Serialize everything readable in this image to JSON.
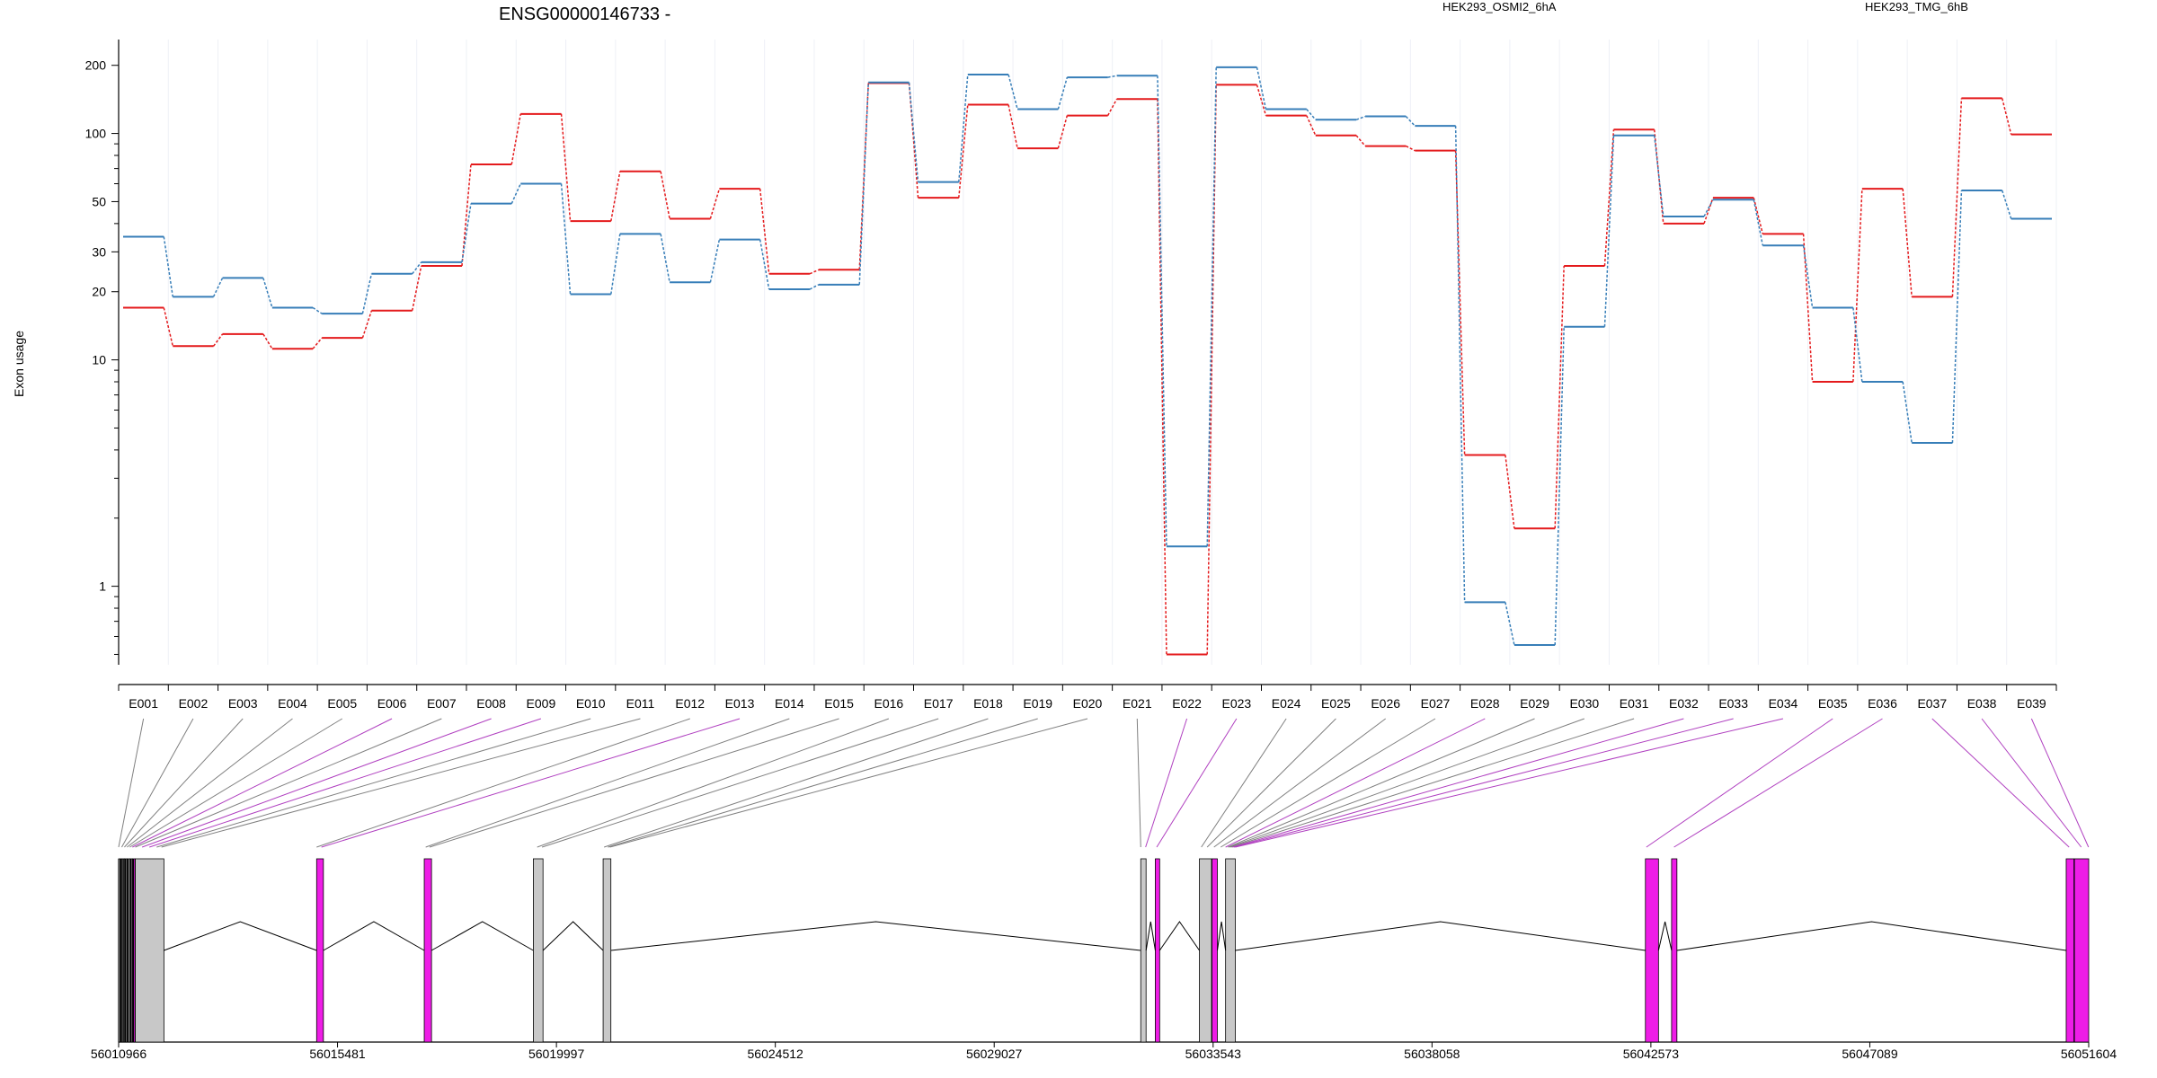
{
  "title": "ENSG00000146733 -",
  "ylabel": "Exon usage",
  "legend": [
    {
      "name": "HEK293_OSMI2_6hA",
      "color": "#e41a1c"
    },
    {
      "name": "HEK293_TMG_6hB",
      "color": "#377eb8"
    }
  ],
  "chart_data": {
    "type": "line",
    "scale": "log",
    "ylim": [
      0.45,
      260
    ],
    "yticks": [
      1,
      10,
      20,
      30,
      50,
      100,
      200
    ],
    "categories": [
      "E001",
      "E002",
      "E003",
      "E004",
      "E005",
      "E006",
      "E007",
      "E008",
      "E009",
      "E010",
      "E011",
      "E012",
      "E013",
      "E014",
      "E015",
      "E016",
      "E017",
      "E018",
      "E019",
      "E020",
      "E021",
      "E022",
      "E023",
      "E024",
      "E025",
      "E026",
      "E027",
      "E028",
      "E029",
      "E030",
      "E031",
      "E032",
      "E033",
      "E034",
      "E035",
      "E036",
      "E037",
      "E038",
      "E039"
    ],
    "series": [
      {
        "name": "HEK293_OSMI2_6hA",
        "color": "#e41a1c",
        "values": [
          17,
          11.5,
          13,
          11.2,
          12.5,
          16.5,
          26,
          73,
          122,
          41,
          68,
          42,
          57,
          24,
          25,
          167,
          52,
          134,
          86,
          120,
          142,
          0.5,
          164,
          120,
          98,
          88,
          84,
          3.8,
          1.8,
          26,
          104,
          40,
          52,
          36,
          8,
          57,
          19,
          143,
          99
        ]
      },
      {
        "name": "HEK293_TMG_6hB",
        "color": "#377eb8",
        "values": [
          35,
          19,
          23,
          17,
          16,
          24,
          27,
          49,
          60,
          19.5,
          36,
          22,
          34,
          20.5,
          21.5,
          168,
          61,
          182,
          128,
          177,
          180,
          1.5,
          196,
          128,
          115,
          119,
          108,
          0.85,
          0.55,
          14,
          98,
          43,
          51,
          32,
          17,
          8,
          4.3,
          56,
          42
        ]
      }
    ]
  },
  "gene_model": {
    "coordinate_labels": [
      "56010966",
      "56015481",
      "56019997",
      "56024512",
      "56029027",
      "56033543",
      "56038058",
      "56042573",
      "56047089",
      "56051604"
    ],
    "exon_highlight": [
      false,
      false,
      false,
      false,
      false,
      true,
      false,
      true,
      true,
      false,
      false,
      false,
      true,
      false,
      false,
      false,
      false,
      false,
      false,
      false,
      false,
      true,
      true,
      false,
      false,
      false,
      false,
      true,
      false,
      false,
      false,
      true,
      true,
      true,
      true,
      true,
      true,
      true,
      true
    ],
    "colors": {
      "normal_exon": "#c8c8c8",
      "highlight_exon": "#ee1de6",
      "connector": "#808080",
      "highlight_connector": "#b040c0"
    }
  }
}
